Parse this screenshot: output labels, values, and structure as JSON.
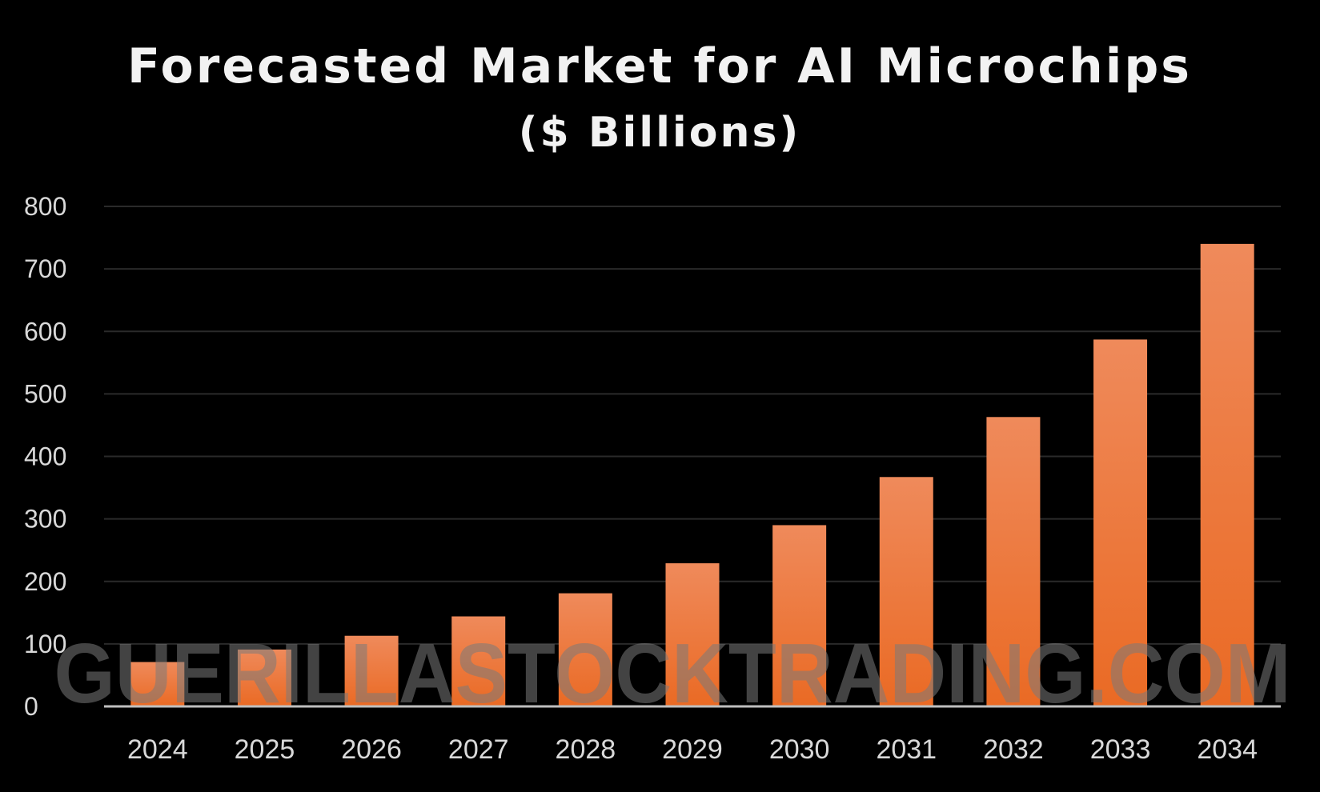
{
  "chart_data": {
    "type": "bar",
    "title": "Forecasted Market for AI Microchips",
    "subtitle": "($ Billions)",
    "categories": [
      "2024",
      "2025",
      "2026",
      "2027",
      "2028",
      "2029",
      "2030",
      "2031",
      "2032",
      "2033",
      "2034"
    ],
    "values": [
      71,
      91,
      113,
      144,
      181,
      229,
      290,
      367,
      463,
      587,
      740
    ],
    "ylim": [
      0,
      800
    ],
    "yticks": [
      "0",
      "100",
      "200",
      "300",
      "400",
      "500",
      "600",
      "700",
      "800"
    ],
    "grid": true,
    "bar_color_top": "#ef8a5b",
    "bar_color_bottom": "#ea6a24",
    "background_color": "#000000",
    "gridline_color": "#2a2a2a",
    "axis_color": "#bfbfbf"
  },
  "watermark": {
    "text": "GUERILLASTOCKTRADING.COM"
  }
}
